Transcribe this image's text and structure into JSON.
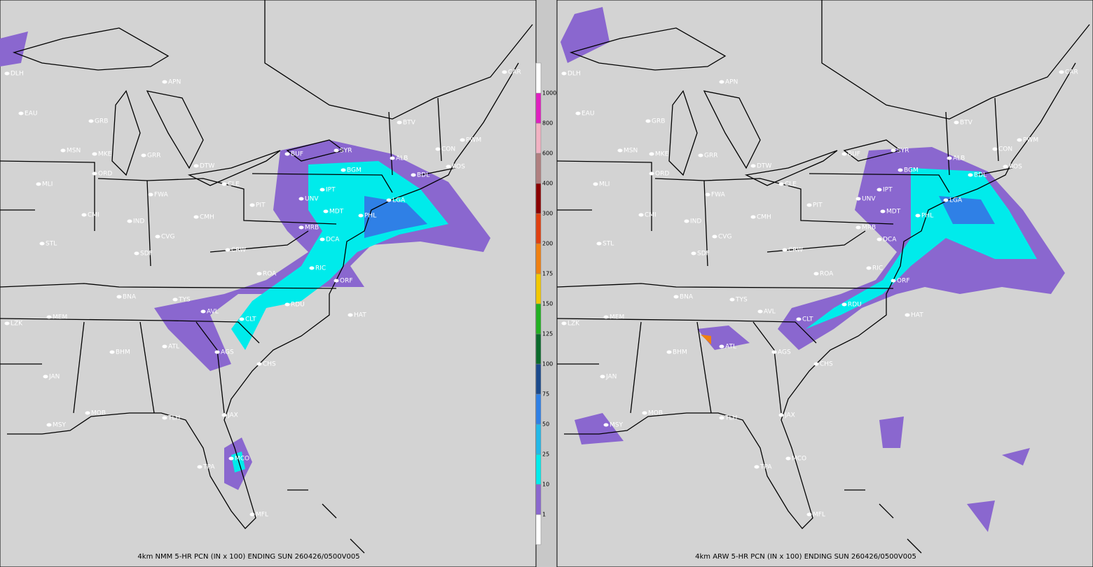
{
  "panels": [
    {
      "caption": "4km NMM 5-HR PCN (IN x 100) ENDING SUN 260426/0500V005"
    },
    {
      "caption": "4km ARW 5-HR PCN (IN x 100) ENDING SUN 260426/0500V005"
    }
  ],
  "stations": [
    "DLH",
    "EAU",
    "GRB",
    "MSN",
    "MKE",
    "GRR",
    "ORD",
    "MLI",
    "FWA",
    "CLE",
    "DTW",
    "CMI",
    "IND",
    "CMH",
    "PIT",
    "STL",
    "SDF",
    "CVG",
    "CRW",
    "ROA",
    "BNA",
    "TYS",
    "AVL",
    "MEM",
    "LZK",
    "BHM",
    "ATL",
    "CLT",
    "AGS",
    "CHS",
    "JAN",
    "TLH",
    "JAX",
    "MSY",
    "MOB",
    "TPA",
    "MCO",
    "MFL",
    "RDU",
    "HAT",
    "ORF",
    "RIC",
    "DCA",
    "MRB",
    "MDT",
    "PHL",
    "LGA",
    "IPT",
    "UNV",
    "BGM",
    "SYR",
    "ALB",
    "BDL",
    "BOS",
    "BTV",
    "CON",
    "PWM",
    "CAR",
    "APN",
    "BUF"
  ],
  "colorbar": {
    "labels": [
      1,
      10,
      25,
      50,
      75,
      100,
      125,
      150,
      175,
      200,
      300,
      400,
      600,
      800,
      1000
    ],
    "colors": [
      "#ffffff",
      "#8a67cf",
      "#00ebeb",
      "#22b8e8",
      "#2f80e6",
      "#1b4a8c",
      "#0b6a2c",
      "#21b021",
      "#f2c800",
      "#f08010",
      "#e04010",
      "#8b0000",
      "#b07f7f",
      "#f2b2c2",
      "#e020c0",
      "#ffffff"
    ]
  }
}
